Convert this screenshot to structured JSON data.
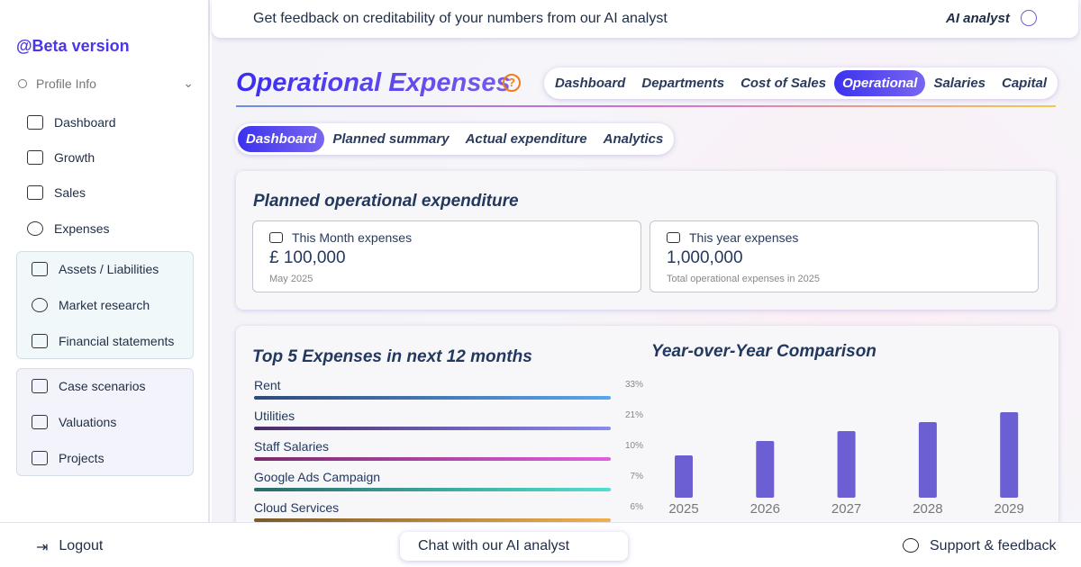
{
  "banner": {
    "text": "Get feedback on creditability of your numbers from our AI analyst",
    "ai_analyst": "AI analyst"
  },
  "sidebar": {
    "brand": "@Beta version",
    "profile": "Profile Info",
    "main": [
      "Dashboard",
      "Growth",
      "Sales",
      "Expenses"
    ],
    "group_1": [
      "Assets / Liabilities",
      "Market research",
      "Financial statements"
    ],
    "group_2": [
      "Case scenarios",
      "Valuations",
      "Projects"
    ]
  },
  "page": {
    "title": "Operational Expenses",
    "tabs": [
      "Dashboard",
      "Departments",
      "Cost of Sales",
      "Operational",
      "Salaries",
      "Capital"
    ],
    "subtabs": [
      "Dashboard",
      "Planned summary",
      "Actual expenditure",
      "Analytics"
    ]
  },
  "planned": {
    "title": "Planned operational expenditure",
    "cards": [
      {
        "label": "This Month expenses",
        "value": "£ 100,000",
        "note": "May 2025"
      },
      {
        "label": "This year expenses",
        "value": "1,000,000",
        "note": "Total operational expenses in 2025"
      }
    ]
  },
  "top_expenses": {
    "title": "Top 5 Expenses in next 12 months",
    "items": [
      {
        "name": "Rent",
        "share": "33%"
      },
      {
        "name": "Utilities",
        "share": "21%"
      },
      {
        "name": "Staff Salaries",
        "share": "10%"
      },
      {
        "name": "Google Ads Campaign",
        "share": "7%"
      },
      {
        "name": "Cloud Services",
        "share": "6%"
      }
    ]
  },
  "chart_data": {
    "type": "bar",
    "title": "Year-over-Year Comparison",
    "categories": [
      "2025",
      "2026",
      "2027",
      "2028",
      "2029"
    ],
    "values": [
      47,
      63,
      74,
      84,
      95
    ],
    "color": "#6b5fd3"
  },
  "footer": {
    "logout": "Logout",
    "chat": "Chat with our AI analyst",
    "support": "Support & feedback"
  }
}
